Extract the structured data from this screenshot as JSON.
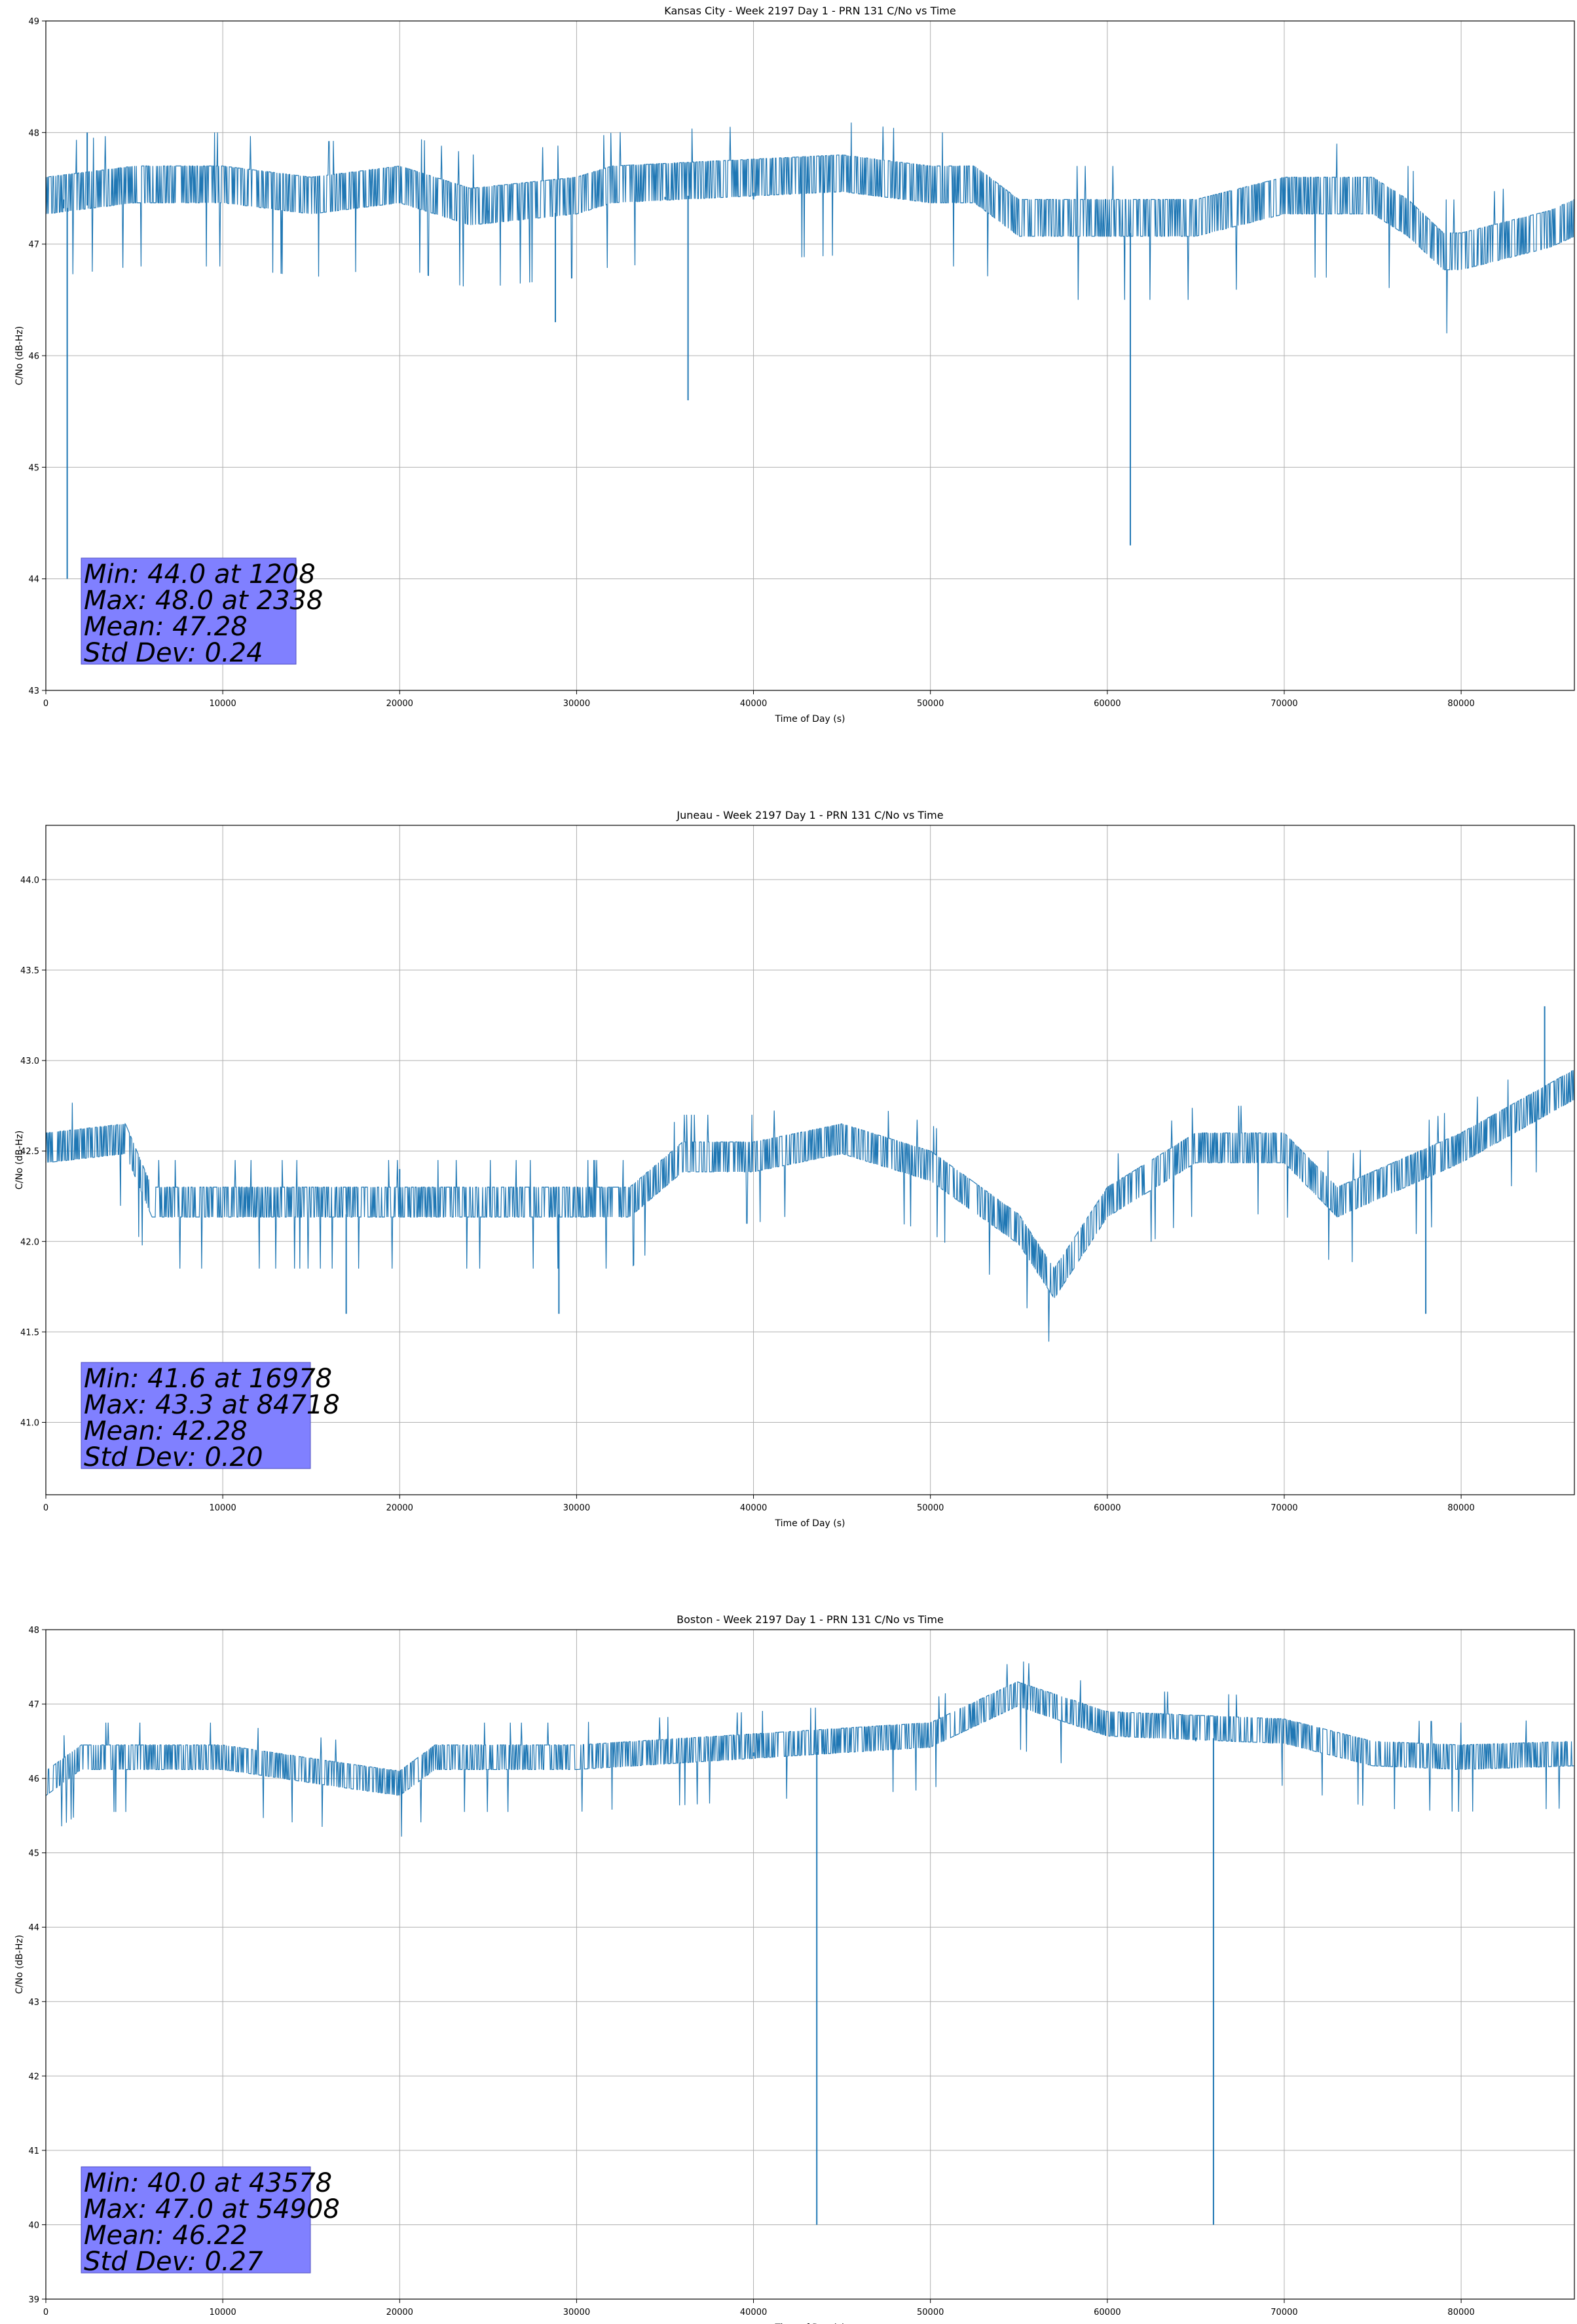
{
  "chart_data": [
    {
      "type": "line",
      "title": "Kansas City - Week 2197 Day 1 - PRN 131 C/No vs Time",
      "xlabel": "Time of Day (s)",
      "ylabel": "C/No (dB-Hz)",
      "xlim": [
        0,
        86400
      ],
      "ylim": [
        43,
        49
      ],
      "xticks": [
        0,
        10000,
        20000,
        30000,
        40000,
        50000,
        60000,
        70000,
        80000
      ],
      "yticks": [
        43,
        44,
        45,
        46,
        47,
        48,
        49
      ],
      "ytick_labels": [
        "43",
        "44",
        "45",
        "46",
        "47",
        "48",
        "49"
      ],
      "grid": true,
      "series_color": "#1f77b4",
      "stats_box_color": "#8080ff",
      "stats": [
        "Min: 44.0 at 1208",
        "Max: 48.0 at 2338",
        "Mean: 47.28",
        "Std Dev: 0.24"
      ],
      "series": [
        {
          "x": [
            0,
            1000,
            1208,
            2338,
            5000,
            10000,
            15000,
            20000,
            24000,
            25000,
            28800,
            30000,
            32000,
            35000,
            36300,
            40000,
            45000,
            50000,
            52500,
            55000,
            60000,
            61300,
            62000,
            65000,
            70000,
            75000,
            77000,
            79000,
            80000,
            85000,
            86400
          ],
          "y": [
            47.3,
            47.4,
            44.0,
            48.0,
            47.4,
            47.4,
            47.3,
            47.4,
            47.2,
            47.3,
            46.3,
            47.3,
            47.4,
            47.4,
            45.6,
            47.4,
            47.5,
            47.4,
            47.4,
            47.1,
            47.1,
            44.3,
            47.1,
            47.1,
            47.3,
            47.3,
            47.1,
            46.8,
            46.8,
            47.0,
            47.1
          ]
        }
      ]
    },
    {
      "type": "line",
      "title": "Juneau - Week 2197 Day 1 - PRN 131 C/No vs Time",
      "xlabel": "Time of Day (s)",
      "ylabel": "C/No (dB-Hz)",
      "xlim": [
        0,
        86400
      ],
      "ylim": [
        40.6,
        44.3
      ],
      "xticks": [
        0,
        10000,
        20000,
        30000,
        40000,
        50000,
        60000,
        70000,
        80000
      ],
      "yticks": [
        41.0,
        41.5,
        42.0,
        42.5,
        43.0,
        43.5,
        44.0
      ],
      "ytick_labels": [
        "41.0",
        "41.5",
        "42.0",
        "42.5",
        "43.0",
        "43.5",
        "44.0"
      ],
      "grid": true,
      "series_color": "#1f77b4",
      "stats_box_color": "#8080ff",
      "stats": [
        "Min: 41.6 at 16978",
        "Max: 43.3 at 84718",
        "Mean: 42.28",
        "Std Dev: 0.20"
      ],
      "series": [
        {
          "x": [
            0,
            4500,
            6000,
            10000,
            16978,
            20000,
            25000,
            29000,
            33000,
            36000,
            40000,
            45000,
            50000,
            55000,
            57000,
            60000,
            65000,
            70000,
            73000,
            78000,
            80000,
            84718,
            86400
          ],
          "y": [
            42.45,
            42.5,
            42.15,
            42.15,
            41.6,
            42.4,
            42.15,
            41.6,
            42.15,
            42.4,
            42.4,
            42.5,
            42.35,
            42.0,
            41.7,
            42.15,
            42.45,
            42.45,
            42.15,
            41.6,
            42.45,
            43.3,
            42.8
          ]
        }
      ]
    },
    {
      "type": "line",
      "title": "Boston - Week 2197 Day 1 - PRN 131 C/No vs Time",
      "xlabel": "Time of Day (s)",
      "ylabel": "C/No (dB-Hz)",
      "xlim": [
        0,
        86400
      ],
      "ylim": [
        39,
        48
      ],
      "xticks": [
        0,
        10000,
        20000,
        30000,
        40000,
        50000,
        60000,
        70000,
        80000
      ],
      "yticks": [
        39,
        40,
        41,
        42,
        43,
        44,
        45,
        46,
        47,
        48
      ],
      "ytick_labels": [
        "39",
        "40",
        "41",
        "42",
        "43",
        "44",
        "45",
        "46",
        "47",
        "48"
      ],
      "grid": true,
      "series_color": "#1f77b4",
      "stats_box_color": "#8080ff",
      "stats": [
        "Min: 40.0 at 43578",
        "Max: 47.0 at 54908",
        "Mean: 46.22",
        "Std Dev: 0.27"
      ],
      "series": [
        {
          "x": [
            0,
            2000,
            10000,
            17000,
            20000,
            22000,
            30000,
            40000,
            43578,
            44000,
            50000,
            54908,
            60000,
            65000,
            66000,
            67000,
            70000,
            75000,
            80000,
            86400
          ],
          "y": [
            45.8,
            46.15,
            46.15,
            45.9,
            45.8,
            46.15,
            46.15,
            46.35,
            40.0,
            46.4,
            46.45,
            47.0,
            46.6,
            46.5,
            40.0,
            46.5,
            46.5,
            46.2,
            46.15,
            46.2
          ]
        }
      ]
    }
  ]
}
